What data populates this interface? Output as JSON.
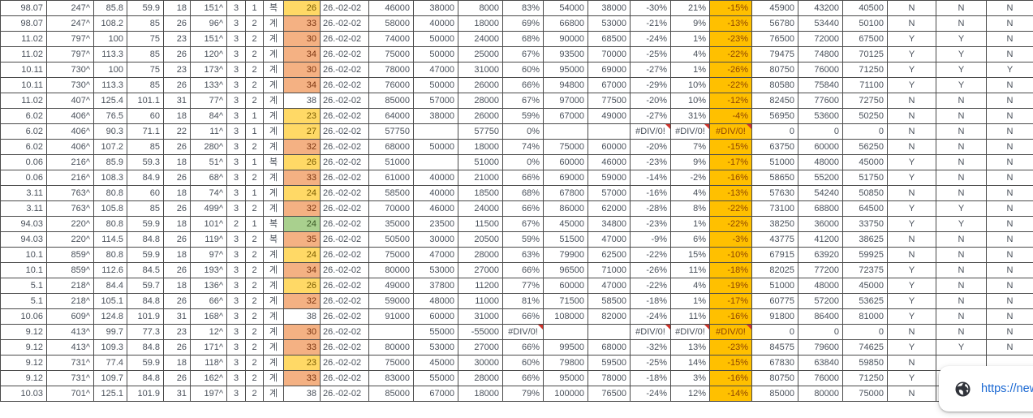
{
  "colors": {
    "highlight_yellow": "#FFD966",
    "highlight_orange": "#F4B183",
    "highlight_green": "#A9D08E",
    "highlight_amber": "#FFC000",
    "error_mark_red": "#D0342C",
    "link_blue": "#1967D2",
    "grid_border": "#4A4A4A"
  },
  "status_bubble": {
    "icon": "globe-icon",
    "url_text": "https://new"
  },
  "table": {
    "rows": [
      {
        "k": "yellow",
        "err": [],
        "cells": [
          "98.07",
          "247^",
          "85.8",
          "59.9",
          "18",
          "151^",
          "3",
          "1",
          "복",
          "26",
          "26.-02-02",
          "46000",
          "38000",
          "8000",
          "83%",
          "54000",
          "38000",
          "-30%",
          "21%",
          "-15%",
          "45900",
          "43200",
          "40500",
          "N",
          "N",
          "N"
        ]
      },
      {
        "k": "orange",
        "err": [],
        "cells": [
          "98.07",
          "247^",
          "108.2",
          "85",
          "26",
          "96^",
          "3",
          "2",
          "계",
          "33",
          "26.-02-02",
          "58000",
          "40000",
          "18000",
          "69%",
          "66800",
          "53000",
          "-21%",
          "9%",
          "-13%",
          "56780",
          "53440",
          "50100",
          "N",
          "N",
          "N"
        ]
      },
      {
        "k": "orange",
        "err": [],
        "cells": [
          "11.02",
          "797^",
          "100",
          "75",
          "23",
          "151^",
          "3",
          "2",
          "계",
          "30",
          "26.-02-02",
          "74000",
          "50000",
          "24000",
          "68%",
          "90000",
          "68500",
          "-24%",
          "1%",
          "-23%",
          "76500",
          "72000",
          "67500",
          "Y",
          "Y",
          "N"
        ]
      },
      {
        "k": "orange",
        "err": [],
        "cells": [
          "11.02",
          "797^",
          "113.3",
          "85",
          "26",
          "120^",
          "3",
          "2",
          "계",
          "34",
          "26.-02-02",
          "75000",
          "50000",
          "25000",
          "67%",
          "93500",
          "70000",
          "-25%",
          "4%",
          "-22%",
          "79475",
          "74800",
          "70125",
          "Y",
          "Y",
          "N"
        ]
      },
      {
        "k": "orange",
        "err": [],
        "cells": [
          "10.11",
          "730^",
          "100",
          "75",
          "23",
          "173^",
          "3",
          "2",
          "계",
          "30",
          "26.-02-02",
          "78000",
          "47000",
          "31000",
          "60%",
          "95000",
          "69000",
          "-27%",
          "1%",
          "-26%",
          "80750",
          "76000",
          "71250",
          "Y",
          "Y",
          "Y"
        ]
      },
      {
        "k": "orange",
        "err": [],
        "cells": [
          "10.11",
          "730^",
          "113.3",
          "85",
          "26",
          "133^",
          "3",
          "2",
          "계",
          "34",
          "26.-02-02",
          "76000",
          "50000",
          "26000",
          "66%",
          "94800",
          "67000",
          "-29%",
          "10%",
          "-22%",
          "80580",
          "75840",
          "71100",
          "Y",
          "Y",
          "N"
        ]
      },
      {
        "k": "none",
        "err": [],
        "cells": [
          "11.02",
          "407^",
          "125.4",
          "101.1",
          "31",
          "77^",
          "3",
          "2",
          "계",
          "38",
          "26.-02-02",
          "85000",
          "57000",
          "28000",
          "67%",
          "97000",
          "77500",
          "-20%",
          "10%",
          "-12%",
          "82450",
          "77600",
          "72750",
          "N",
          "N",
          "N"
        ]
      },
      {
        "k": "yellow",
        "err": [],
        "cells": [
          "6.02",
          "406^",
          "76.5",
          "60",
          "18",
          "84^",
          "3",
          "1",
          "계",
          "23",
          "26.-02-02",
          "64000",
          "38000",
          "26000",
          "59%",
          "67000",
          "49000",
          "-27%",
          "31%",
          "-4%",
          "56950",
          "53600",
          "50250",
          "N",
          "N",
          "N"
        ]
      },
      {
        "k": "yellow",
        "err": [
          17,
          18,
          19
        ],
        "cells": [
          "6.02",
          "406^",
          "90.3",
          "71.1",
          "22",
          "11^",
          "3",
          "1",
          "계",
          "27",
          "26.-02-02",
          "57750",
          "",
          "57750",
          "0%",
          "",
          "",
          "#DIV/0!",
          "#DIV/0!",
          "#DIV/0!",
          "0",
          "0",
          "0",
          "N",
          "N",
          "N"
        ]
      },
      {
        "k": "orange",
        "err": [],
        "cells": [
          "6.02",
          "406^",
          "107.2",
          "85",
          "26",
          "280^",
          "3",
          "2",
          "계",
          "32",
          "26.-02-02",
          "68000",
          "50000",
          "18000",
          "74%",
          "75000",
          "60000",
          "-20%",
          "7%",
          "-15%",
          "63750",
          "60000",
          "56250",
          "N",
          "N",
          "N"
        ]
      },
      {
        "k": "yellow",
        "err": [],
        "cells": [
          "0.06",
          "216^",
          "85.9",
          "59.3",
          "18",
          "51^",
          "3",
          "1",
          "복",
          "26",
          "26.-02-02",
          "51000",
          "",
          "51000",
          "0%",
          "60000",
          "46000",
          "-23%",
          "9%",
          "-17%",
          "51000",
          "48000",
          "45000",
          "Y",
          "N",
          "N"
        ]
      },
      {
        "k": "orange",
        "err": [],
        "cells": [
          "0.06",
          "216^",
          "108.3",
          "84.9",
          "26",
          "68^",
          "3",
          "2",
          "계",
          "33",
          "26.-02-02",
          "61000",
          "40000",
          "21000",
          "66%",
          "69000",
          "59000",
          "-14%",
          "-2%",
          "-16%",
          "58650",
          "55200",
          "51750",
          "Y",
          "N",
          "N"
        ]
      },
      {
        "k": "yellow",
        "err": [],
        "cells": [
          "3.11",
          "763^",
          "80.8",
          "60",
          "18",
          "74^",
          "3",
          "1",
          "계",
          "24",
          "26.-02-02",
          "58500",
          "40000",
          "18500",
          "68%",
          "67800",
          "57000",
          "-16%",
          "4%",
          "-13%",
          "57630",
          "54240",
          "50850",
          "N",
          "N",
          "N"
        ]
      },
      {
        "k": "orange",
        "err": [],
        "cells": [
          "3.11",
          "763^",
          "105.8",
          "85",
          "26",
          "499^",
          "3",
          "2",
          "계",
          "32",
          "26.-02-02",
          "70000",
          "46000",
          "24000",
          "66%",
          "86000",
          "62000",
          "-28%",
          "8%",
          "-22%",
          "73100",
          "68800",
          "64500",
          "Y",
          "Y",
          "N"
        ]
      },
      {
        "k": "green",
        "err": [],
        "cells": [
          "94.03",
          "220^",
          "80.8",
          "59.9",
          "18",
          "101^",
          "2",
          "1",
          "복",
          "24",
          "26.-02-02",
          "35000",
          "23500",
          "11500",
          "67%",
          "45000",
          "34800",
          "-23%",
          "1%",
          "-22%",
          "38250",
          "36000",
          "33750",
          "Y",
          "Y",
          "N"
        ]
      },
      {
        "k": "orange",
        "err": [],
        "cells": [
          "94.03",
          "220^",
          "114.5",
          "84.8",
          "26",
          "119^",
          "3",
          "2",
          "복",
          "35",
          "26.-02-02",
          "50500",
          "30000",
          "20500",
          "59%",
          "51500",
          "47000",
          "-9%",
          "6%",
          "-3%",
          "43775",
          "41200",
          "38625",
          "N",
          "N",
          "N"
        ]
      },
      {
        "k": "yellow",
        "err": [],
        "cells": [
          "10.1",
          "859^",
          "80.8",
          "59.9",
          "18",
          "97^",
          "3",
          "2",
          "계",
          "24",
          "26.-02-02",
          "75000",
          "47000",
          "28000",
          "63%",
          "79900",
          "62500",
          "-22%",
          "15%",
          "-10%",
          "67915",
          "63920",
          "59925",
          "N",
          "N",
          "N"
        ]
      },
      {
        "k": "orange",
        "err": [],
        "cells": [
          "10.1",
          "859^",
          "112.6",
          "84.5",
          "26",
          "193^",
          "3",
          "2",
          "계",
          "34",
          "26.-02-02",
          "80000",
          "53000",
          "27000",
          "66%",
          "96500",
          "71000",
          "-26%",
          "11%",
          "-18%",
          "82025",
          "77200",
          "72375",
          "Y",
          "N",
          "N"
        ]
      },
      {
        "k": "yellow",
        "err": [],
        "cells": [
          "5.1",
          "218^",
          "84.4",
          "59.7",
          "18",
          "136^",
          "3",
          "2",
          "계",
          "26",
          "26.-02-02",
          "49000",
          "37800",
          "11200",
          "77%",
          "60000",
          "47000",
          "-22%",
          "4%",
          "-19%",
          "51000",
          "48000",
          "45000",
          "Y",
          "N",
          "N"
        ]
      },
      {
        "k": "orange",
        "err": [],
        "cells": [
          "5.1",
          "218^",
          "105.1",
          "84.8",
          "26",
          "66^",
          "3",
          "2",
          "계",
          "32",
          "26.-02-02",
          "59000",
          "48000",
          "11000",
          "81%",
          "71500",
          "58500",
          "-18%",
          "1%",
          "-17%",
          "60775",
          "57200",
          "53625",
          "Y",
          "N",
          "N"
        ]
      },
      {
        "k": "none",
        "err": [],
        "cells": [
          "10.06",
          "609^",
          "124.8",
          "101.9",
          "31",
          "168^",
          "3",
          "2",
          "계",
          "38",
          "26.-02-02",
          "91000",
          "60000",
          "31000",
          "66%",
          "108000",
          "82000",
          "-24%",
          "11%",
          "-16%",
          "91800",
          "86400",
          "81000",
          "Y",
          "N",
          "N"
        ]
      },
      {
        "k": "orange",
        "err": [
          14,
          17,
          18,
          19
        ],
        "cells": [
          "9.12",
          "413^",
          "99.7",
          "77.3",
          "23",
          "12^",
          "3",
          "2",
          "계",
          "30",
          "26.-02-02",
          "",
          "55000",
          "-55000",
          "#DIV/0!",
          "",
          "",
          "#DIV/0!",
          "#DIV/0!",
          "#DIV/0!",
          "0",
          "0",
          "0",
          "N",
          "N",
          "N"
        ]
      },
      {
        "k": "orange",
        "err": [],
        "cells": [
          "9.12",
          "413^",
          "109.3",
          "84.8",
          "26",
          "171^",
          "3",
          "2",
          "계",
          "33",
          "26.-02-02",
          "80000",
          "53000",
          "27000",
          "66%",
          "99500",
          "68000",
          "-32%",
          "13%",
          "-23%",
          "84575",
          "79600",
          "74625",
          "Y",
          "Y",
          "N"
        ]
      },
      {
        "k": "yellow",
        "err": [],
        "cells": [
          "9.12",
          "731^",
          "77.4",
          "59.9",
          "18",
          "118^",
          "3",
          "2",
          "계",
          "23",
          "26.-02-02",
          "75000",
          "45000",
          "30000",
          "60%",
          "79800",
          "59500",
          "-25%",
          "14%",
          "-15%",
          "67830",
          "63840",
          "59850",
          "N",
          "",
          ""
        ]
      },
      {
        "k": "orange",
        "err": [],
        "cells": [
          "9.12",
          "731^",
          "109.7",
          "84.8",
          "26",
          "162^",
          "3",
          "2",
          "계",
          "33",
          "26.-02-02",
          "83000",
          "55000",
          "28000",
          "66%",
          "95000",
          "78000",
          "-18%",
          "3%",
          "-16%",
          "80750",
          "76000",
          "71250",
          "Y",
          "",
          ""
        ]
      },
      {
        "k": "none",
        "err": [],
        "cells": [
          "10.03",
          "701^",
          "125.1",
          "101.9",
          "31",
          "197^",
          "3",
          "2",
          "계",
          "38",
          "26.-02-02",
          "85000",
          "67000",
          "18000",
          "79%",
          "100000",
          "76500",
          "-24%",
          "12%",
          "-14%",
          "85000",
          "80000",
          "75000",
          "N",
          "N",
          "N"
        ]
      }
    ]
  }
}
